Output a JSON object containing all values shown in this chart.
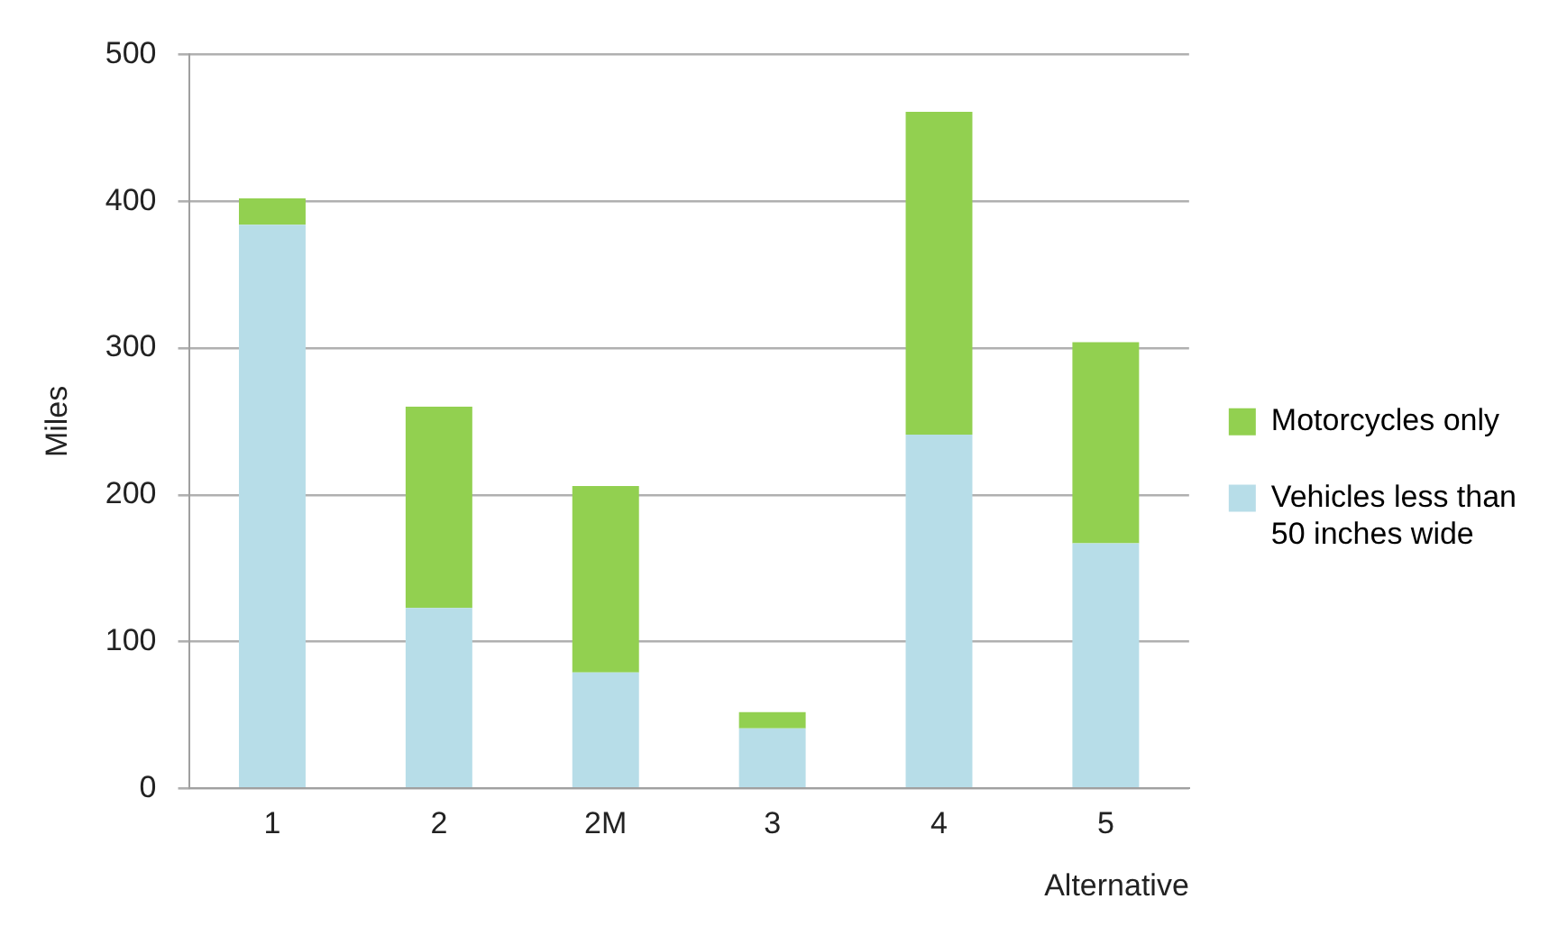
{
  "chart_data": {
    "type": "bar",
    "stacked": true,
    "categories": [
      "1",
      "2",
      "2M",
      "3",
      "4",
      "5"
    ],
    "series": [
      {
        "name": "Vehicles less than 50 inches wide",
        "color": "#b7dde8",
        "values": [
          384,
          123,
          79,
          41,
          241,
          167
        ]
      },
      {
        "name": "Motorcycles only",
        "color": "#92d050",
        "values": [
          18,
          137,
          127,
          11,
          220,
          137
        ]
      }
    ],
    "ylabel": "Miles",
    "xlabel": "Alternative",
    "ylim": [
      0,
      500
    ],
    "yticks": [
      0,
      100,
      200,
      300,
      400,
      500
    ],
    "grid": "y",
    "legend": "right"
  }
}
